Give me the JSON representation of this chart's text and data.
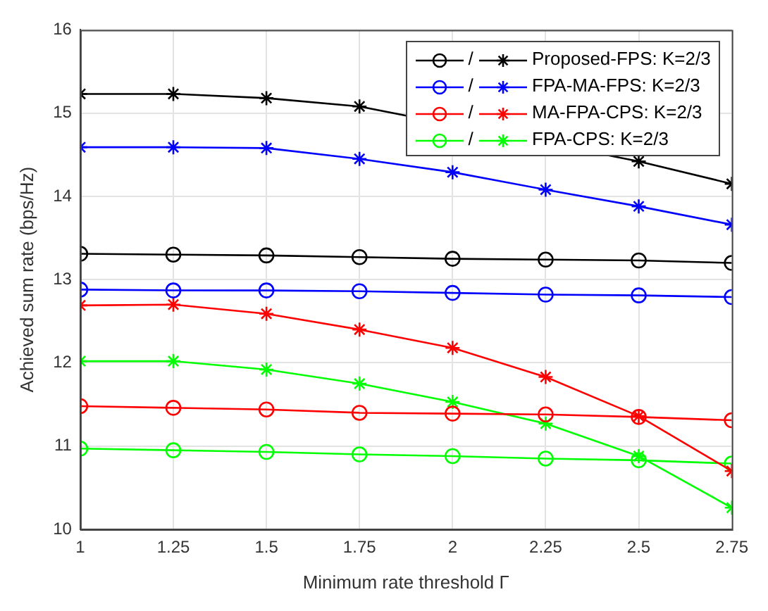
{
  "chart_data": {
    "type": "line",
    "xlabel": "Minimum rate threshold Γ",
    "ylabel": "Achieved sum rate (bps/Hz)",
    "x": [
      1,
      1.25,
      1.5,
      1.75,
      2,
      2.25,
      2.5,
      2.75
    ],
    "xlim": [
      1,
      2.75
    ],
    "xticks": [
      1,
      1.25,
      1.5,
      1.75,
      2,
      2.25,
      2.5,
      2.75
    ],
    "ylim": [
      10,
      16
    ],
    "yticks": [
      10,
      11,
      12,
      13,
      14,
      15,
      16
    ],
    "grid": true,
    "legend": "top right",
    "series": [
      {
        "name": "/",
        "color": "#000000",
        "marker": "circle",
        "values": [
          13.31,
          13.3,
          13.29,
          13.27,
          13.25,
          13.24,
          13.23,
          13.2
        ]
      },
      {
        "name": "Proposed-FPS: K=2/3",
        "color": "#000000",
        "marker": "cross",
        "values": [
          15.23,
          15.23,
          15.18,
          15.08,
          null,
          null,
          14.42,
          14.15
        ]
      },
      {
        "name": "/",
        "color": "#0000ff",
        "marker": "circle",
        "values": [
          12.88,
          12.87,
          12.87,
          12.86,
          12.84,
          12.82,
          12.81,
          12.79
        ]
      },
      {
        "name": "FPA-MA-FPS: K=2/3",
        "color": "#0000ff",
        "marker": "cross",
        "values": [
          14.59,
          14.59,
          14.58,
          14.45,
          14.29,
          14.08,
          13.88,
          13.66
        ]
      },
      {
        "name": "/",
        "color": "#ff0000",
        "marker": "circle",
        "values": [
          11.48,
          11.46,
          11.44,
          11.4,
          11.39,
          11.38,
          11.35,
          11.31
        ]
      },
      {
        "name": "MA-FPA-CPS: K=2/3",
        "color": "#ff0000",
        "marker": "cross",
        "values": [
          12.69,
          12.7,
          12.59,
          12.4,
          12.18,
          11.83,
          11.36,
          10.7
        ]
      },
      {
        "name": "/",
        "color": "#00ff00",
        "marker": "circle",
        "values": [
          10.97,
          10.95,
          10.93,
          10.9,
          10.88,
          10.85,
          10.83,
          10.79
        ]
      },
      {
        "name": "FPA-CPS: K=2/3",
        "color": "#00ff00",
        "marker": "cross",
        "values": [
          12.02,
          12.02,
          11.92,
          11.75,
          11.53,
          11.27,
          10.88,
          10.26
        ]
      }
    ]
  }
}
